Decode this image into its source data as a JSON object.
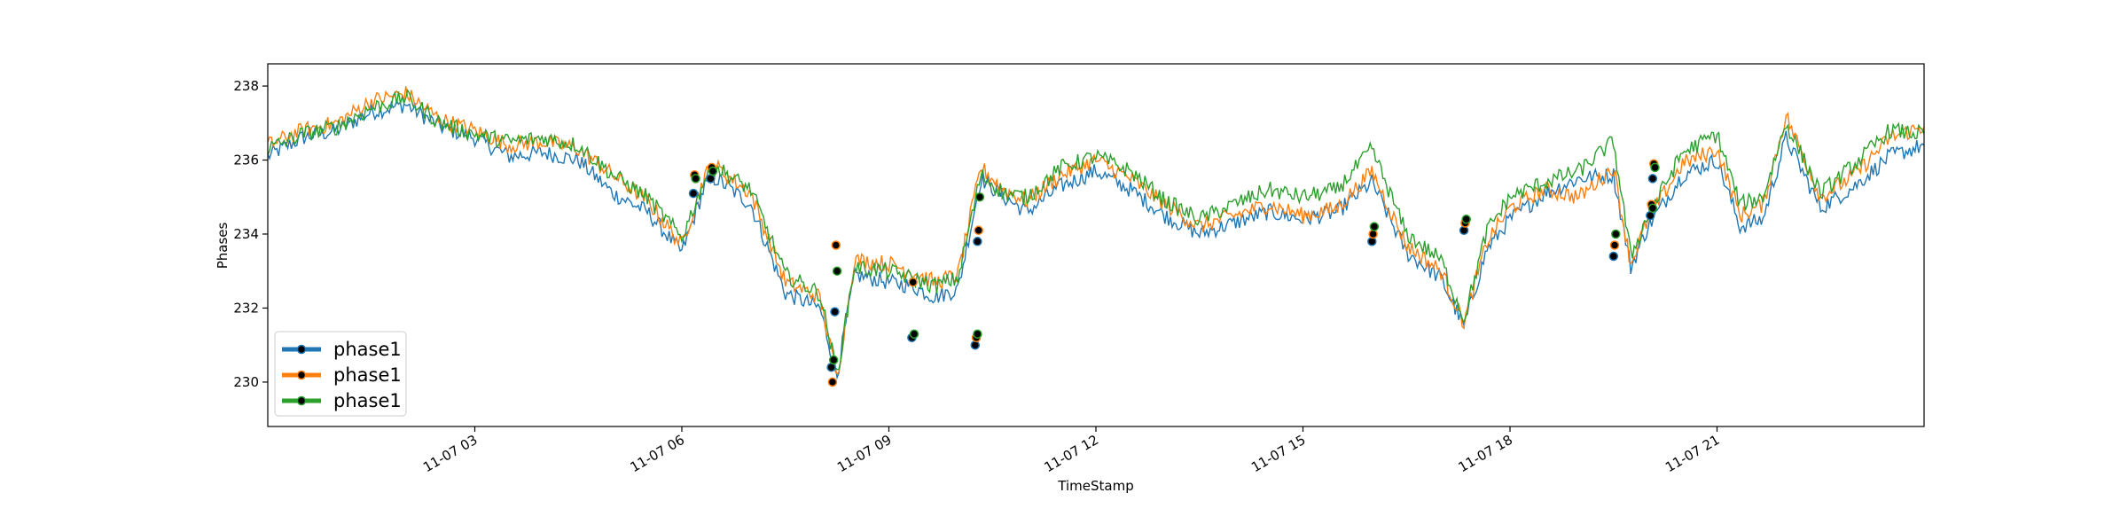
{
  "chart_data": {
    "type": "line",
    "title": "",
    "xlabel": "TimeStamp",
    "ylabel": "Phases",
    "x_range": [
      "2019-11-07 00:00",
      "2019-11-08 00:00"
    ],
    "ylim": [
      228.8,
      238.6
    ],
    "grid": false,
    "legend_placement": "lower-left",
    "x_ticks": [
      {
        "t": "2019-11-07 03:00",
        "label": "11-07 03"
      },
      {
        "t": "2019-11-07 06:00",
        "label": "11-07 06"
      },
      {
        "t": "2019-11-07 09:00",
        "label": "11-07 09"
      },
      {
        "t": "2019-11-07 12:00",
        "label": "11-07 12"
      },
      {
        "t": "2019-11-07 15:00",
        "label": "11-07 15"
      },
      {
        "t": "2019-11-07 18:00",
        "label": "11-07 18"
      },
      {
        "t": "2019-11-07 21:00",
        "label": "11-07 21"
      }
    ],
    "y_ticks": [
      230,
      232,
      234,
      236,
      238
    ],
    "y_tick_labels": [
      "230",
      "232",
      "234",
      "236",
      "238"
    ],
    "x": [
      "2019-11-07 00:00",
      "2019-11-07 00:30",
      "2019-11-07 01:00",
      "2019-11-07 01:30",
      "2019-11-07 02:00",
      "2019-11-07 02:30",
      "2019-11-07 03:00",
      "2019-11-07 03:30",
      "2019-11-07 04:00",
      "2019-11-07 04:30",
      "2019-11-07 05:00",
      "2019-11-07 05:30",
      "2019-11-07 06:00",
      "2019-11-07 06:20",
      "2019-11-07 06:30",
      "2019-11-07 07:00",
      "2019-11-07 07:30",
      "2019-11-07 08:00",
      "2019-11-07 08:15",
      "2019-11-07 08:30",
      "2019-11-07 09:00",
      "2019-11-07 09:20",
      "2019-11-07 09:40",
      "2019-11-07 10:00",
      "2019-11-07 10:20",
      "2019-11-07 10:40",
      "2019-11-07 11:00",
      "2019-11-07 11:30",
      "2019-11-07 12:00",
      "2019-11-07 12:30",
      "2019-11-07 13:00",
      "2019-11-07 13:30",
      "2019-11-07 14:00",
      "2019-11-07 14:30",
      "2019-11-07 15:00",
      "2019-11-07 15:30",
      "2019-11-07 16:00",
      "2019-11-07 16:30",
      "2019-11-07 17:00",
      "2019-11-07 17:20",
      "2019-11-07 17:40",
      "2019-11-07 18:00",
      "2019-11-07 18:30",
      "2019-11-07 19:00",
      "2019-11-07 19:30",
      "2019-11-07 19:45",
      "2019-11-07 20:00",
      "2019-11-07 20:30",
      "2019-11-07 21:00",
      "2019-11-07 21:20",
      "2019-11-07 21:40",
      "2019-11-07 22:00",
      "2019-11-07 22:30",
      "2019-11-07 23:00",
      "2019-11-07 23:30",
      "2019-11-08 00:00"
    ],
    "series": [
      {
        "name": "phase1",
        "color": "#1f77b4",
        "values": [
          236.1,
          236.6,
          236.8,
          237.3,
          237.5,
          236.9,
          236.6,
          236.1,
          236.2,
          236.0,
          235.1,
          234.6,
          233.5,
          235.3,
          235.5,
          234.8,
          232.4,
          232.0,
          230.2,
          232.9,
          232.7,
          232.6,
          232.3,
          232.5,
          235.5,
          235.0,
          234.6,
          235.3,
          235.7,
          235.2,
          234.5,
          234.0,
          234.3,
          234.6,
          234.4,
          234.6,
          235.4,
          233.5,
          232.8,
          231.5,
          233.6,
          234.4,
          235.1,
          235.5,
          235.6,
          233.1,
          234.2,
          235.6,
          236.0,
          234.2,
          234.4,
          236.6,
          234.7,
          235.3,
          236.1,
          236.4
        ]
      },
      {
        "name": "phase1",
        "color": "#ff7f0e",
        "values": [
          236.4,
          236.8,
          237.0,
          237.6,
          237.8,
          237.1,
          236.8,
          236.4,
          236.5,
          236.3,
          235.6,
          234.9,
          233.7,
          235.6,
          235.8,
          235.1,
          232.7,
          232.3,
          230.1,
          233.3,
          233.2,
          233.0,
          232.7,
          232.9,
          235.8,
          235.2,
          234.9,
          235.6,
          236.0,
          235.5,
          234.8,
          234.2,
          234.5,
          234.8,
          234.5,
          234.7,
          235.7,
          233.7,
          233.0,
          231.6,
          233.8,
          234.7,
          235.2,
          235.0,
          235.8,
          233.2,
          234.4,
          235.9,
          236.3,
          234.5,
          234.8,
          237.2,
          235.0,
          235.6,
          236.6,
          236.9
        ]
      },
      {
        "name": "phase1",
        "color": "#2ca02c",
        "values": [
          236.3,
          236.7,
          236.9,
          237.4,
          237.7,
          237.0,
          236.7,
          236.5,
          236.6,
          236.4,
          235.6,
          235.0,
          233.9,
          235.5,
          235.8,
          235.2,
          232.9,
          232.4,
          230.2,
          233.1,
          233.0,
          232.8,
          232.6,
          232.8,
          235.6,
          235.1,
          235.0,
          235.8,
          236.1,
          235.7,
          234.9,
          234.4,
          234.8,
          235.2,
          235.0,
          235.2,
          236.3,
          234.0,
          233.3,
          231.7,
          234.1,
          235.0,
          235.4,
          235.7,
          236.5,
          233.4,
          234.5,
          236.2,
          236.7,
          234.8,
          235.0,
          237.0,
          235.1,
          235.9,
          236.8,
          236.7
        ]
      }
    ],
    "markers": [
      {
        "series": 0,
        "points": [
          [
            "2019-11-07 06:10",
            235.1
          ],
          [
            "2019-11-07 06:25",
            235.5
          ],
          [
            "2019-11-07 08:10",
            230.4
          ],
          [
            "2019-11-07 08:13",
            231.9
          ],
          [
            "2019-11-07 09:20",
            231.2
          ],
          [
            "2019-11-07 10:15",
            231.0
          ],
          [
            "2019-11-07 10:17",
            233.8
          ],
          [
            "2019-11-07 16:00",
            233.8
          ],
          [
            "2019-11-07 17:20",
            234.1
          ],
          [
            "2019-11-07 19:30",
            233.4
          ],
          [
            "2019-11-07 20:02",
            234.5
          ],
          [
            "2019-11-07 20:04",
            235.5
          ]
        ]
      },
      {
        "series": 1,
        "points": [
          [
            "2019-11-07 06:11",
            235.6
          ],
          [
            "2019-11-07 06:26",
            235.8
          ],
          [
            "2019-11-07 08:11",
            230.0
          ],
          [
            "2019-11-07 08:14",
            233.7
          ],
          [
            "2019-11-07 09:21",
            232.7
          ],
          [
            "2019-11-07 10:16",
            231.2
          ],
          [
            "2019-11-07 10:18",
            234.1
          ],
          [
            "2019-11-07 16:01",
            234.0
          ],
          [
            "2019-11-07 17:21",
            234.3
          ],
          [
            "2019-11-07 19:31",
            233.7
          ],
          [
            "2019-11-07 20:03",
            234.8
          ],
          [
            "2019-11-07 20:05",
            235.9
          ]
        ]
      },
      {
        "series": 2,
        "points": [
          [
            "2019-11-07 06:12",
            235.5
          ],
          [
            "2019-11-07 06:27",
            235.7
          ],
          [
            "2019-11-07 08:12",
            230.6
          ],
          [
            "2019-11-07 08:15",
            233.0
          ],
          [
            "2019-11-07 09:22",
            231.3
          ],
          [
            "2019-11-07 10:17",
            231.3
          ],
          [
            "2019-11-07 10:19",
            235.0
          ],
          [
            "2019-11-07 16:02",
            234.2
          ],
          [
            "2019-11-07 17:22",
            234.4
          ],
          [
            "2019-11-07 19:32",
            234.0
          ],
          [
            "2019-11-07 20:04",
            234.7
          ],
          [
            "2019-11-07 20:06",
            235.8
          ]
        ]
      }
    ],
    "legend": [
      {
        "label": "phase1",
        "color": "#1f77b4"
      },
      {
        "label": "phase1",
        "color": "#ff7f0e"
      },
      {
        "label": "phase1",
        "color": "#2ca02c"
      }
    ]
  }
}
